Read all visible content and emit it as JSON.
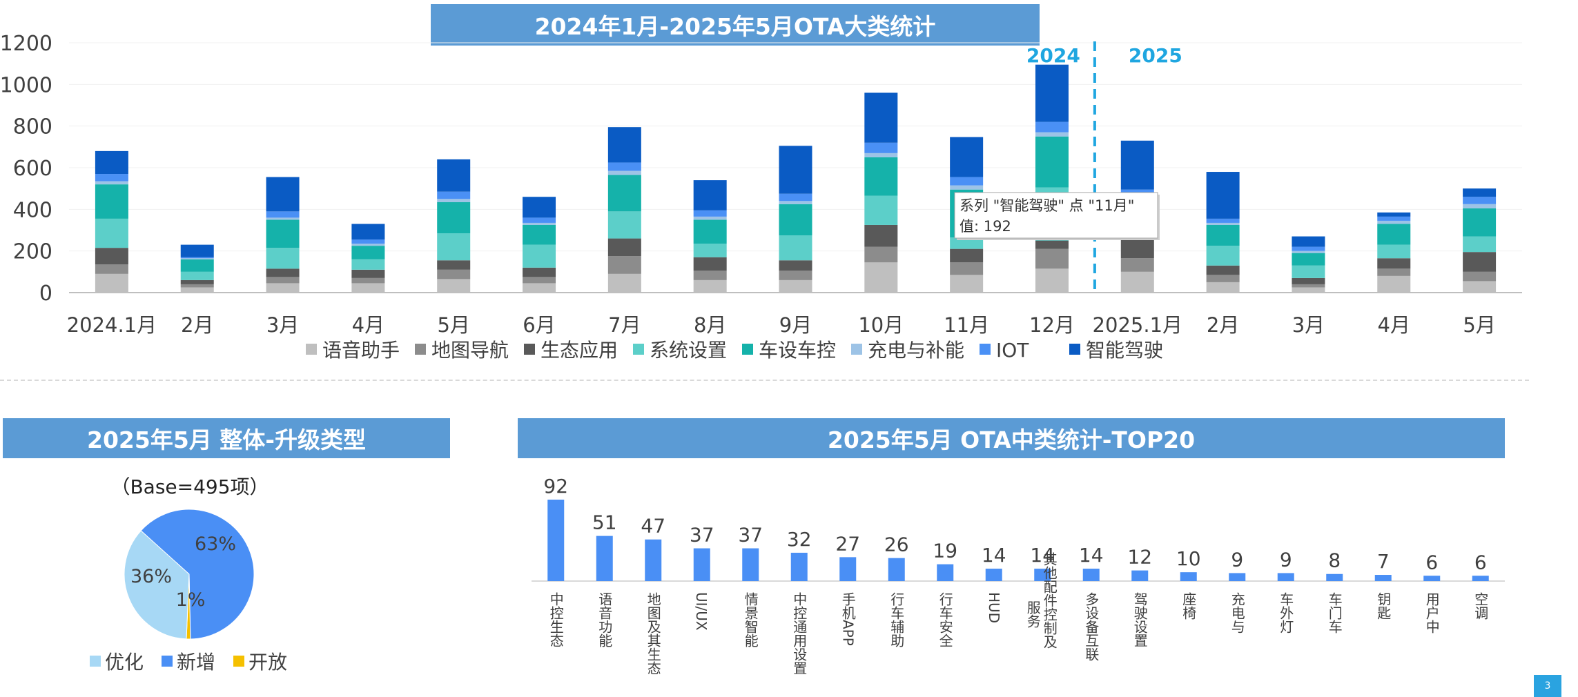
{
  "top_chart": {
    "title": "2024年1月-2025年5月OTA大类统计",
    "year_labels": [
      "2024",
      "2025"
    ],
    "tooltip": {
      "line1": "系列 \"智能驾驶\" 点 \"11月\"",
      "line2": "值: 192"
    }
  },
  "pie_chart": {
    "title": "2025年5月 整体-升级类型",
    "base_text": "（Base=495项）"
  },
  "bar_chart": {
    "title": "2025年5月 OTA中类统计-TOP20"
  },
  "page_number": "3",
  "colors": {
    "banner": "#5b9bd5",
    "year_divider": "#1fa6e0",
    "bar": "#4a8ff5",
    "pie_optimize": "#a7d8f5",
    "pie_new": "#4a8ff5",
    "pie_open": "#f5c000"
  },
  "chart_data": [
    {
      "type": "bar",
      "stacked": true,
      "categories": [
        "2024.1月",
        "2月",
        "3月",
        "4月",
        "5月",
        "6月",
        "7月",
        "8月",
        "9月",
        "10月",
        "11月",
        "12月",
        "2025.1月",
        "2月",
        "3月",
        "4月",
        "5月"
      ],
      "ylim": [
        0,
        1200
      ],
      "yticks": [
        0,
        200,
        400,
        600,
        800,
        1000,
        1200
      ],
      "legend_position": "bottom",
      "series": [
        {
          "name": "语音助手",
          "color": "#bfbfbf",
          "values": [
            90,
            25,
            45,
            45,
            65,
            45,
            90,
            60,
            60,
            145,
            85,
            115,
            100,
            50,
            25,
            80,
            55
          ]
        },
        {
          "name": "地图导航",
          "color": "#8c8c8c",
          "values": [
            45,
            15,
            30,
            25,
            45,
            30,
            85,
            45,
            45,
            75,
            60,
            95,
            65,
            35,
            15,
            35,
            45
          ]
        },
        {
          "name": "生态应用",
          "color": "#595959",
          "values": [
            80,
            20,
            40,
            40,
            45,
            45,
            85,
            65,
            50,
            105,
            65,
            40,
            95,
            45,
            30,
            50,
            95
          ]
        },
        {
          "name": "系统设置",
          "color": "#5ccfc9",
          "values": [
            140,
            40,
            100,
            50,
            130,
            110,
            130,
            65,
            120,
            140,
            55,
            255,
            85,
            95,
            60,
            65,
            75
          ]
        },
        {
          "name": "车设车控",
          "color": "#15b2aa",
          "values": [
            165,
            60,
            135,
            65,
            150,
            95,
            175,
            115,
            150,
            185,
            230,
            245,
            105,
            100,
            60,
            100,
            135
          ]
        },
        {
          "name": "充电与补能",
          "color": "#9dc3e6",
          "values": [
            15,
            5,
            10,
            10,
            15,
            10,
            20,
            15,
            15,
            20,
            20,
            20,
            15,
            10,
            10,
            15,
            20
          ]
        },
        {
          "name": "IOT",
          "color": "#4a90f5",
          "values": [
            35,
            5,
            30,
            20,
            35,
            25,
            40,
            30,
            35,
            50,
            40,
            50,
            30,
            20,
            20,
            20,
            35
          ]
        },
        {
          "name": "智能驾驶",
          "color": "#0a5bc4",
          "values": [
            110,
            60,
            165,
            75,
            155,
            100,
            170,
            145,
            230,
            240,
            192,
            275,
            235,
            225,
            50,
            20,
            40
          ]
        }
      ]
    },
    {
      "type": "pie",
      "legend_position": "bottom",
      "slices": [
        {
          "name": "优化",
          "value": 36,
          "label": "36%"
        },
        {
          "name": "新增",
          "value": 63,
          "label": "63%"
        },
        {
          "name": "开放",
          "value": 1,
          "label": "1%"
        }
      ]
    },
    {
      "type": "bar",
      "categories": [
        "中控生态",
        "语音功能",
        "地图及其生态",
        "UI/UX",
        "情景智能",
        "中控通用设置",
        "手机APP",
        "行车辅助",
        "行车安全",
        "HUD",
        "其他配件控制及服务",
        "多设备互联",
        "驾驶设置",
        "座椅",
        "充电与补能",
        "车外灯光",
        "车门车窗",
        "钥匙",
        "用户中心",
        "空调"
      ],
      "display_labels": [
        "中控生态",
        "语音功能",
        "地图及其生态",
        "UI/UX",
        "情景智能",
        "中控通用设置",
        "手机APP",
        "行车辅助",
        "行车安全",
        "HUD",
        "其他配件控制及服务",
        "多设备互联",
        "驾驶设置",
        "座椅",
        "充电与",
        "车外灯",
        "车门车",
        "钥匙",
        "用户中",
        "空调"
      ],
      "values": [
        92,
        51,
        47,
        37,
        37,
        32,
        27,
        26,
        19,
        14,
        14,
        14,
        12,
        10,
        9,
        9,
        8,
        7,
        6,
        6
      ]
    }
  ]
}
